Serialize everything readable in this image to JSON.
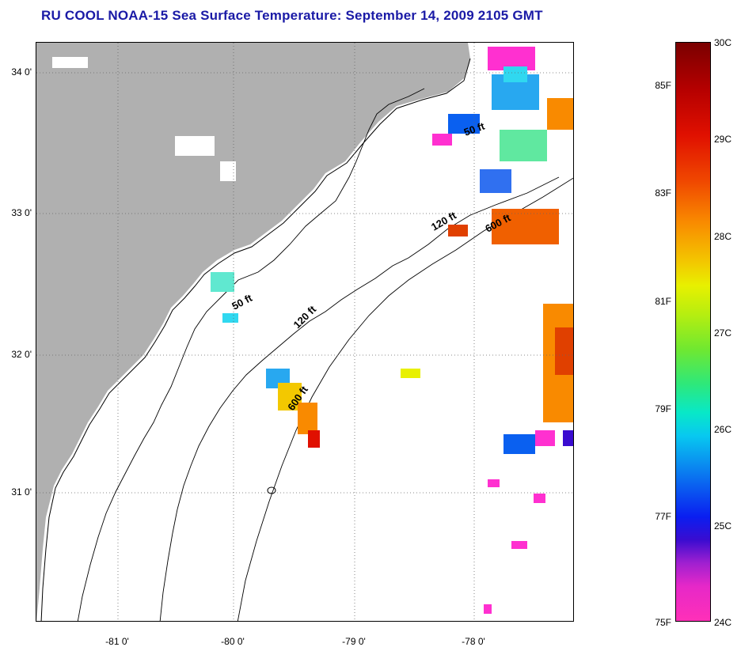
{
  "title": "RU COOL  NOAA-15  Sea Surface Temperature:  September 14, 2009 2105 GMT",
  "map": {
    "land_color": "#b0b0b0",
    "water_color": "#ffffff",
    "lat_labels": [
      "34 0'",
      "33 0'",
      "32 0'",
      "31 0'"
    ],
    "lon_labels": [
      "-81 0'",
      "-80 0'",
      "-79 0'",
      "-78 0'"
    ],
    "contour_labels": [
      "50 ft",
      "120 ft",
      "600 ft",
      "50 ft",
      "120 ft",
      "600 ft"
    ]
  },
  "colorbar": {
    "fahrenheit_labels": [
      "85F",
      "83F",
      "81F",
      "79F",
      "77F",
      "75F"
    ],
    "celsius_labels": [
      "30C",
      "29C",
      "28C",
      "27C",
      "26C",
      "25C",
      "24C"
    ],
    "colors": [
      "#7a0000",
      "#e01000",
      "#f98a00",
      "#e8f000",
      "#2ee87a",
      "#08c8f0",
      "#0a1ef0",
      "#a020d0",
      "#ff30b8"
    ]
  }
}
